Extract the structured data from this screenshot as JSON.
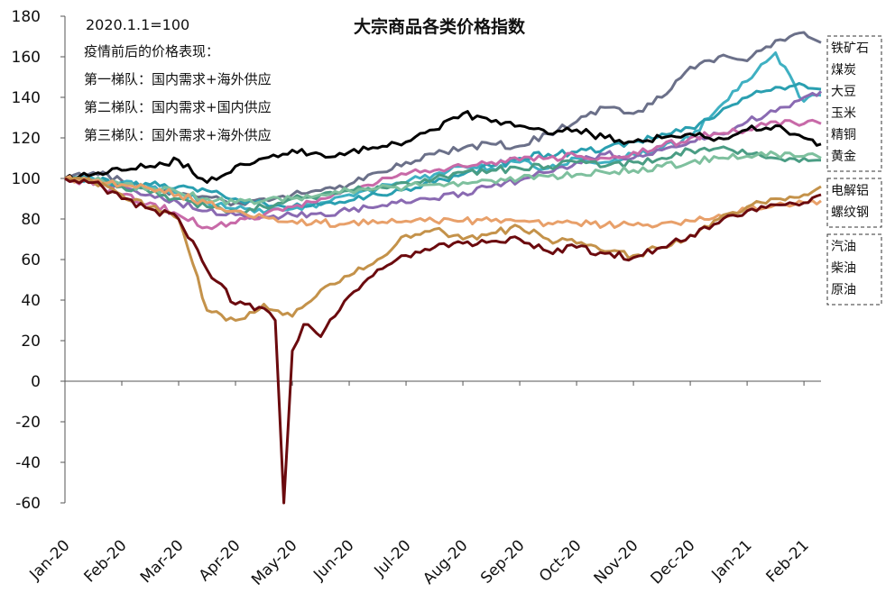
{
  "chart_data": {
    "type": "line",
    "title": "大宗商品各类价格指数",
    "base_note": "2020.1.1=100",
    "annotation_lines": [
      "疫情前后的价格表现：",
      "第一梯队：国内需求+海外供应",
      "第二梯队：国内需求+国内供应",
      "第三梯队：国外需求+海外供应"
    ],
    "ylim": [
      -60,
      180
    ],
    "yticks": [
      -60,
      -40,
      -20,
      0,
      20,
      40,
      60,
      80,
      100,
      120,
      140,
      160,
      180
    ],
    "ytick_labels": [
      "-60",
      "-40",
      "-20",
      "0",
      "20",
      "40",
      "60",
      "80",
      "100",
      "120",
      "140",
      "160",
      "180"
    ],
    "xlim": [
      0,
      13.3
    ],
    "xticks": [
      "Jan-20",
      "Feb-20",
      "Mar-20",
      "Apr-20",
      "May-20",
      "Jun-20",
      "Jul-20",
      "Aug-20",
      "Sep-20",
      "Oct-20",
      "Nov-20",
      "Dec-20",
      "Jan-21",
      "Feb-21"
    ],
    "legend_groups": [
      {
        "name": "第一梯队",
        "entries": [
          "铁矿石",
          "煤炭",
          "大豆",
          "玉米",
          "精铜",
          "黄金"
        ]
      },
      {
        "name": "第二梯队",
        "entries": [
          "电解铝",
          "螺纹钢"
        ]
      },
      {
        "name": "第三梯队",
        "entries": [
          "汽油",
          "柴油",
          "原油"
        ]
      }
    ],
    "series": [
      {
        "name": "铁矿石",
        "color": "#6b7089",
        "x": [
          0,
          0.5,
          1,
          1.5,
          2,
          2.5,
          3,
          3.5,
          4,
          4.5,
          5,
          5.5,
          6,
          6.5,
          7,
          7.5,
          8,
          8.5,
          9,
          9.5,
          10,
          10.5,
          11,
          11.5,
          12,
          12.5,
          13,
          13.3
        ],
        "values": [
          100,
          103,
          99,
          95,
          92,
          91,
          88,
          90,
          92,
          94,
          97,
          103,
          108,
          112,
          115,
          117,
          116,
          122,
          128,
          135,
          132,
          140,
          155,
          160,
          158,
          168,
          172,
          167
        ]
      },
      {
        "name": "煤炭",
        "color": "#3fb0c2",
        "x": [
          0,
          0.5,
          1,
          1.5,
          2,
          2.5,
          3,
          3.5,
          4,
          4.5,
          5,
          5.5,
          6,
          6.5,
          7,
          7.5,
          8,
          8.5,
          9,
          9.5,
          10,
          10.5,
          11,
          11.5,
          12,
          12.5,
          13,
          13.3
        ],
        "values": [
          100,
          100,
          98,
          96,
          93,
          88,
          85,
          83,
          85,
          88,
          92,
          95,
          98,
          102,
          106,
          105,
          108,
          105,
          110,
          108,
          112,
          115,
          120,
          135,
          148,
          162,
          138,
          141
        ]
      },
      {
        "name": "大豆",
        "color": "#8a6ab2",
        "x": [
          0,
          0.5,
          1,
          1.5,
          2,
          2.5,
          3,
          3.5,
          4,
          4.5,
          5,
          5.5,
          6,
          6.5,
          7,
          7.5,
          8,
          8.5,
          9,
          9.5,
          10,
          10.5,
          11,
          11.5,
          12,
          12.5,
          13,
          13.3
        ],
        "values": [
          100,
          99,
          96,
          92,
          88,
          84,
          82,
          81,
          82,
          83,
          84,
          86,
          88,
          90,
          93,
          96,
          99,
          103,
          108,
          112,
          110,
          114,
          118,
          122,
          128,
          133,
          140,
          143
        ]
      },
      {
        "name": "玉米",
        "color": "#2a9fb0",
        "x": [
          0,
          0.5,
          1,
          1.5,
          2,
          2.5,
          3,
          3.5,
          4,
          4.5,
          5,
          5.5,
          6,
          6.5,
          7,
          7.5,
          8,
          8.5,
          9,
          9.5,
          10,
          10.5,
          11,
          11.5,
          12,
          12.5,
          13,
          13.3
        ],
        "values": [
          100,
          99,
          98,
          97,
          96,
          94,
          90,
          88,
          86,
          87,
          89,
          92,
          95,
          98,
          102,
          106,
          110,
          112,
          113,
          115,
          118,
          122,
          125,
          132,
          140,
          145,
          146,
          144
        ]
      },
      {
        "name": "精铜",
        "color": "#c86aa8",
        "x": [
          0,
          0.5,
          1,
          1.5,
          2,
          2.5,
          3,
          3.5,
          4,
          4.5,
          5,
          5.5,
          6,
          6.5,
          7,
          7.5,
          8,
          8.5,
          9,
          9.5,
          10,
          10.5,
          11,
          11.5,
          12,
          12.5,
          13,
          13.3
        ],
        "values": [
          100,
          97,
          92,
          88,
          82,
          76,
          78,
          82,
          86,
          90,
          94,
          98,
          102,
          104,
          106,
          108,
          109,
          110,
          111,
          110,
          113,
          116,
          120,
          122,
          124,
          128,
          127,
          127
        ]
      },
      {
        "name": "黄金",
        "color": "#000000",
        "x": [
          0,
          0.5,
          1,
          1.5,
          2,
          2.5,
          3,
          3.5,
          4,
          4.5,
          5,
          5.5,
          6,
          6.5,
          7,
          7.5,
          8,
          8.5,
          9,
          9.5,
          10,
          10.5,
          11,
          11.5,
          12,
          12.5,
          13,
          13.3
        ],
        "values": [
          100,
          102,
          104,
          106,
          109,
          98,
          106,
          110,
          114,
          112,
          113,
          115,
          118,
          124,
          132,
          128,
          126,
          122,
          124,
          120,
          118,
          120,
          122,
          120,
          124,
          126,
          120,
          117
        ]
      },
      {
        "name": "电解铝",
        "color": "#4a9d84",
        "x": [
          0,
          0.5,
          1,
          1.5,
          2,
          2.5,
          3,
          3.5,
          4,
          4.5,
          5,
          5.5,
          6,
          6.5,
          7,
          7.5,
          8,
          8.5,
          9,
          9.5,
          10,
          10.5,
          11,
          11.5,
          12,
          12.5,
          13,
          13.3
        ],
        "values": [
          100,
          98,
          96,
          93,
          90,
          86,
          84,
          86,
          90,
          92,
          94,
          96,
          98,
          100,
          103,
          104,
          105,
          106,
          108,
          106,
          108,
          110,
          114,
          115,
          112,
          110,
          110,
          109
        ]
      },
      {
        "name": "螺纹钢",
        "color": "#7ec09e",
        "x": [
          0,
          0.5,
          1,
          1.5,
          2,
          2.5,
          3,
          3.5,
          4,
          4.5,
          5,
          5.5,
          6,
          6.5,
          7,
          7.5,
          8,
          8.5,
          9,
          9.5,
          10,
          10.5,
          11,
          11.5,
          12,
          12.5,
          13,
          13.3
        ],
        "values": [
          100,
          99,
          97,
          95,
          93,
          90,
          88,
          89,
          90,
          92,
          94,
          95,
          96,
          97,
          98,
          99,
          100,
          101,
          102,
          103,
          104,
          106,
          108,
          110,
          111,
          112,
          111,
          110
        ]
      },
      {
        "name": "汽油",
        "color": "#e8a06a",
        "x": [
          0,
          0.5,
          1,
          1.5,
          2,
          2.5,
          3,
          3.5,
          4,
          4.5,
          5,
          5.5,
          6,
          6.5,
          7,
          7.5,
          8,
          8.5,
          9,
          9.5,
          10,
          10.5,
          11,
          11.5,
          12,
          12.5,
          13,
          13.3
        ],
        "values": [
          100,
          99,
          97,
          95,
          92,
          88,
          84,
          81,
          79,
          78,
          78,
          78,
          79,
          79,
          79,
          79,
          79,
          78,
          78,
          77,
          77,
          78,
          79,
          82,
          85,
          87,
          88,
          89
        ]
      },
      {
        "name": "柴油",
        "color": "#c4924a",
        "x": [
          0,
          0.5,
          1,
          1.5,
          2,
          2.5,
          3,
          3.5,
          4,
          4.5,
          5,
          5.5,
          6,
          6.5,
          7,
          7.5,
          8,
          8.5,
          9,
          9.5,
          10,
          10.5,
          11,
          11.5,
          12,
          12.5,
          13,
          13.3
        ],
        "values": [
          100,
          98,
          92,
          86,
          80,
          35,
          30,
          38,
          32,
          45,
          52,
          60,
          72,
          75,
          70,
          73,
          76,
          70,
          68,
          64,
          62,
          66,
          72,
          80,
          86,
          90,
          92,
          96
        ]
      },
      {
        "name": "原油",
        "color": "#6b0a0e",
        "x": [
          0,
          0.5,
          1,
          1.5,
          2,
          2.5,
          3,
          3.5,
          3.7,
          3.85,
          4,
          4.2,
          4.5,
          5,
          5.5,
          6,
          6.5,
          7,
          7.5,
          8,
          8.5,
          9,
          9.5,
          10,
          10.5,
          11,
          11.5,
          12,
          12.5,
          13,
          13.3
        ],
        "values": [
          100,
          98,
          90,
          85,
          80,
          55,
          38,
          36,
          30,
          -60,
          15,
          28,
          22,
          42,
          55,
          62,
          66,
          68,
          69,
          70,
          64,
          66,
          63,
          61,
          66,
          72,
          78,
          84,
          87,
          88,
          92
        ]
      }
    ]
  }
}
